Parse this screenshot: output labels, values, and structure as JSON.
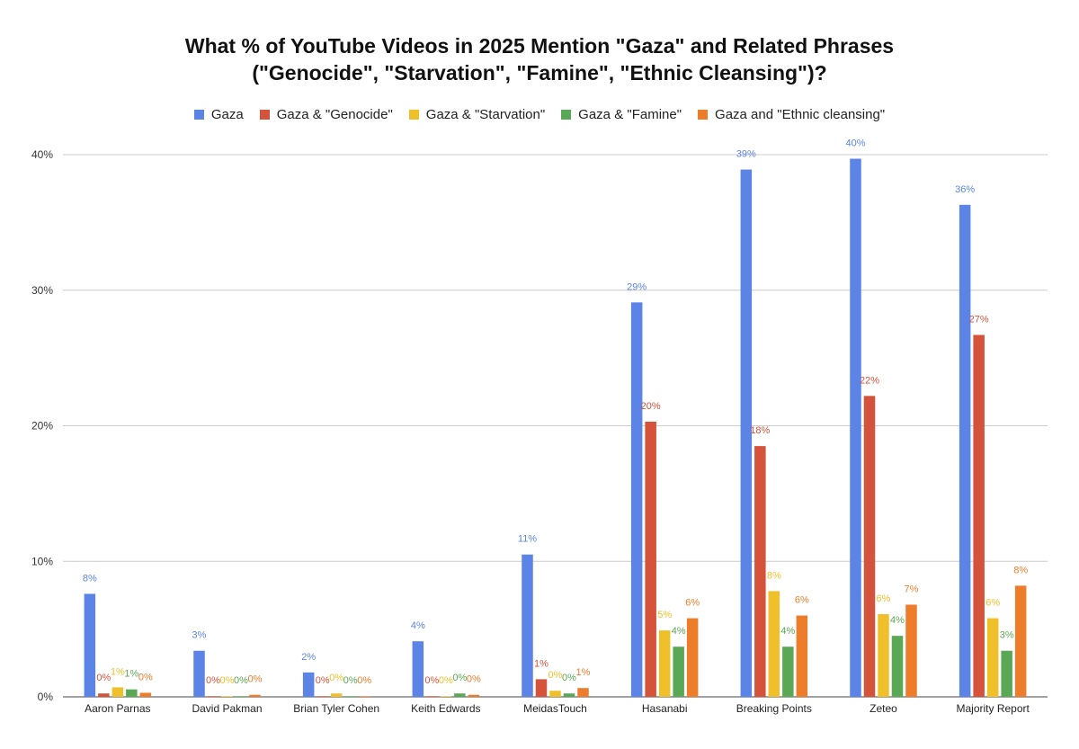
{
  "chart_data": {
    "type": "bar",
    "title_line1": "What % of YouTube Videos in 2025 Mention \"Gaza\" and Related Phrases",
    "title_line2": "(\"Genocide\", \"Starvation\", \"Famine\", \"Ethnic Cleansing\")?",
    "categories": [
      "Aaron Parnas",
      "David Pakman",
      "Brian Tyler Cohen",
      "Keith Edwards",
      "MeidasTouch",
      "Hasanabi",
      "Breaking Points",
      "Zeteo",
      "Majority Report"
    ],
    "series": [
      {
        "name": "Gaza",
        "color": "#5b84e6",
        "values": [
          7.6,
          3.4,
          1.8,
          4.1,
          10.5,
          29.1,
          38.9,
          39.7,
          36.3
        ],
        "labels": [
          "8%",
          "3%",
          "2%",
          "4%",
          "11%",
          "29%",
          "39%",
          "40%",
          "36%"
        ]
      },
      {
        "name": "Gaza & \"Genocide\"",
        "color": "#d5533a",
        "values": [
          0.25,
          0.05,
          0.05,
          0.05,
          1.3,
          20.3,
          18.5,
          22.2,
          26.7
        ],
        "labels": [
          "0%",
          "0%",
          "0%",
          "0%",
          "1%",
          "20%",
          "18%",
          "22%",
          "27%"
        ]
      },
      {
        "name": "Gaza & \"Starvation\"",
        "color": "#efc02a",
        "values": [
          0.7,
          0.05,
          0.25,
          0.05,
          0.45,
          4.9,
          7.8,
          6.1,
          5.8
        ],
        "labels": [
          "1%",
          "0%",
          "0%",
          "0%",
          "0%",
          "5%",
          "8%",
          "6%",
          "6%"
        ]
      },
      {
        "name": "Gaza & \"Famine\"",
        "color": "#5aa856",
        "values": [
          0.55,
          0.05,
          0.05,
          0.25,
          0.25,
          3.7,
          3.7,
          4.5,
          3.4
        ],
        "labels": [
          "1%",
          "0%",
          "0%",
          "0%",
          "0%",
          "4%",
          "4%",
          "4%",
          "3%"
        ]
      },
      {
        "name": "Gaza and \"Ethnic cleansing\"",
        "color": "#ed7d2b",
        "values": [
          0.3,
          0.15,
          0.05,
          0.15,
          0.65,
          5.8,
          6.0,
          6.8,
          8.2
        ],
        "labels": [
          "0%",
          "0%",
          "0%",
          "0%",
          "1%",
          "6%",
          "6%",
          "7%",
          "8%"
        ]
      }
    ],
    "yticks": [
      0,
      10,
      20,
      30,
      40
    ],
    "ytick_labels": [
      "0%",
      "10%",
      "20%",
      "30%",
      "40%"
    ],
    "ylim": [
      0,
      40
    ],
    "grid": true,
    "legend_position": "top"
  }
}
